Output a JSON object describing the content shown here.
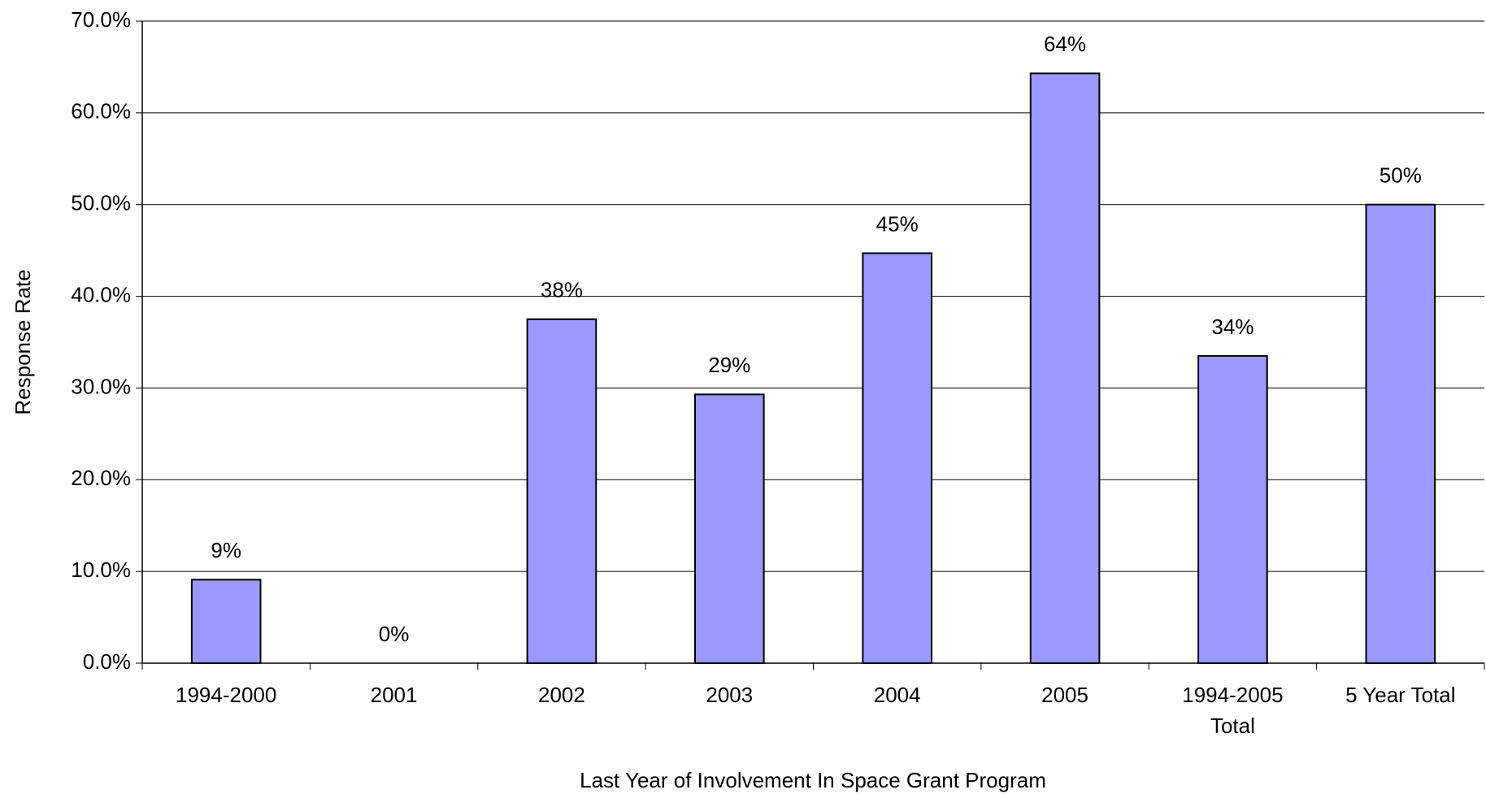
{
  "chart_data": {
    "type": "bar",
    "x_label": "Last Year of Involvement In Space Grant Program",
    "y_label": "Response Rate",
    "categories": [
      "1994-2000",
      "2001",
      "2002",
      "2003",
      "2004",
      "2005",
      "1994-2005 Total",
      "5 Year Total"
    ],
    "values": [
      9.1,
      0,
      37.5,
      29.3,
      44.7,
      64.3,
      33.5,
      50.0
    ],
    "value_labels": [
      "9%",
      "0%",
      "38%",
      "29%",
      "45%",
      "64%",
      "34%",
      "50%"
    ],
    "color": "#9999ff",
    "ylim": [
      0,
      70
    ],
    "yticks": [
      {
        "value": 0,
        "label": "0.0%"
      },
      {
        "value": 10,
        "label": "10.0%"
      },
      {
        "value": 20,
        "label": "20.0%"
      },
      {
        "value": 30,
        "label": "30.0%"
      },
      {
        "value": 40,
        "label": "40.0%"
      },
      {
        "value": 50,
        "label": "50.0%"
      },
      {
        "value": 60,
        "label": "60.0%"
      },
      {
        "value": 70,
        "label": "70.0%"
      }
    ],
    "grid": true
  }
}
